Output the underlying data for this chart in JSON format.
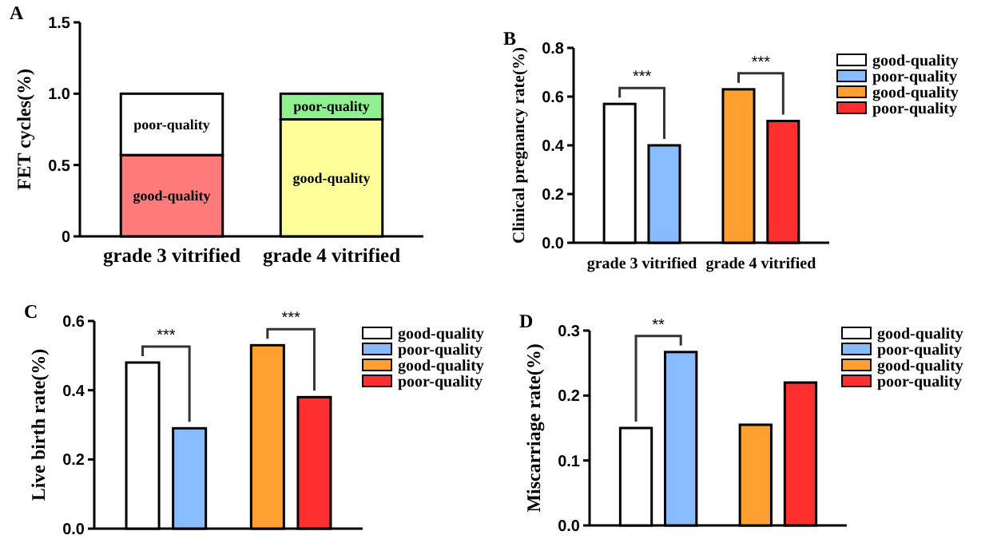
{
  "chart_data": [
    {
      "type": "bar",
      "title": "A",
      "ylabel": "FET cycles(%)",
      "categories": [
        "grade 3 vitrified",
        "grade 4 vitrified"
      ],
      "stacked": true,
      "ylim": [
        0,
        1.5
      ],
      "yticks": [
        0,
        {
          "value": 0.5,
          "label": "0.5"
        },
        {
          "value": 1,
          "label": "1.0"
        },
        {
          "value": 1.5,
          "label": "1.5"
        }
      ],
      "legend": false,
      "series": [
        {
          "name": "good-quality",
          "colors": [
            "#ff7b7b",
            "#ffff99"
          ],
          "values": [
            0.57,
            0.82
          ]
        },
        {
          "name": "poor-quality",
          "colors": [
            "#ffffff",
            "#8ef08e"
          ],
          "values": [
            0.43,
            0.18
          ]
        }
      ]
    },
    {
      "type": "bar",
      "title": "B",
      "ylabel": "Clinical pregnancy rate(%)",
      "categories": [
        "grade 3 vitrified",
        "grade 4 vitrified"
      ],
      "ylim": [
        0,
        0.8
      ],
      "yticks": [
        {
          "value": 0,
          "label": "0.0"
        },
        0.2,
        0.4,
        0.6,
        0.8
      ],
      "legend": "right",
      "annotations": [
        "***",
        "***"
      ],
      "series": [
        {
          "name": "good-quality",
          "color": "#ffffff",
          "values": [
            0.57,
            null
          ]
        },
        {
          "name": "poor-quality",
          "color": "#88bbff",
          "values": [
            0.4,
            null
          ]
        },
        {
          "name": "good-quality",
          "color": "#ff9f2f",
          "values": [
            null,
            0.63
          ]
        },
        {
          "name": "poor-quality",
          "color": "#ff2f2f",
          "values": [
            null,
            0.5
          ]
        }
      ]
    },
    {
      "type": "bar",
      "title": "C",
      "ylabel": "Live birth rate(%)",
      "categories": [
        null,
        null
      ],
      "ylim": [
        0,
        0.6
      ],
      "yticks": [
        {
          "value": 0,
          "label": "0.0"
        },
        0.2,
        0.4,
        0.6
      ],
      "legend": "right",
      "annotations": [
        "***",
        "***"
      ],
      "series": [
        {
          "name": "good-quality",
          "color": "#ffffff",
          "values": [
            0.48,
            null
          ]
        },
        {
          "name": "poor-quality",
          "color": "#88bbff",
          "values": [
            0.29,
            null
          ]
        },
        {
          "name": "good-quality",
          "color": "#ff9f2f",
          "values": [
            null,
            0.53
          ]
        },
        {
          "name": "poor-quality",
          "color": "#ff2f2f",
          "values": [
            null,
            0.38
          ]
        }
      ]
    },
    {
      "type": "bar",
      "title": "D",
      "ylabel": "Miscarriage rate(%)",
      "categories": [
        null,
        null
      ],
      "ylim": [
        0,
        0.3
      ],
      "yticks": [
        {
          "value": 0,
          "label": "0.0"
        },
        0.1,
        0.2,
        0.3
      ],
      "legend": "right",
      "annotations": [
        "**"
      ],
      "series": [
        {
          "name": "good-quality",
          "color": "#ffffff",
          "values": [
            0.15,
            null
          ]
        },
        {
          "name": "poor-quality",
          "color": "#88bbff",
          "values": [
            0.267,
            null
          ]
        },
        {
          "name": "good-quality",
          "color": "#ff9f2f",
          "values": [
            null,
            0.155
          ]
        },
        {
          "name": "poor-quality",
          "color": "#ff2f2f",
          "values": [
            null,
            0.22
          ]
        }
      ]
    }
  ]
}
